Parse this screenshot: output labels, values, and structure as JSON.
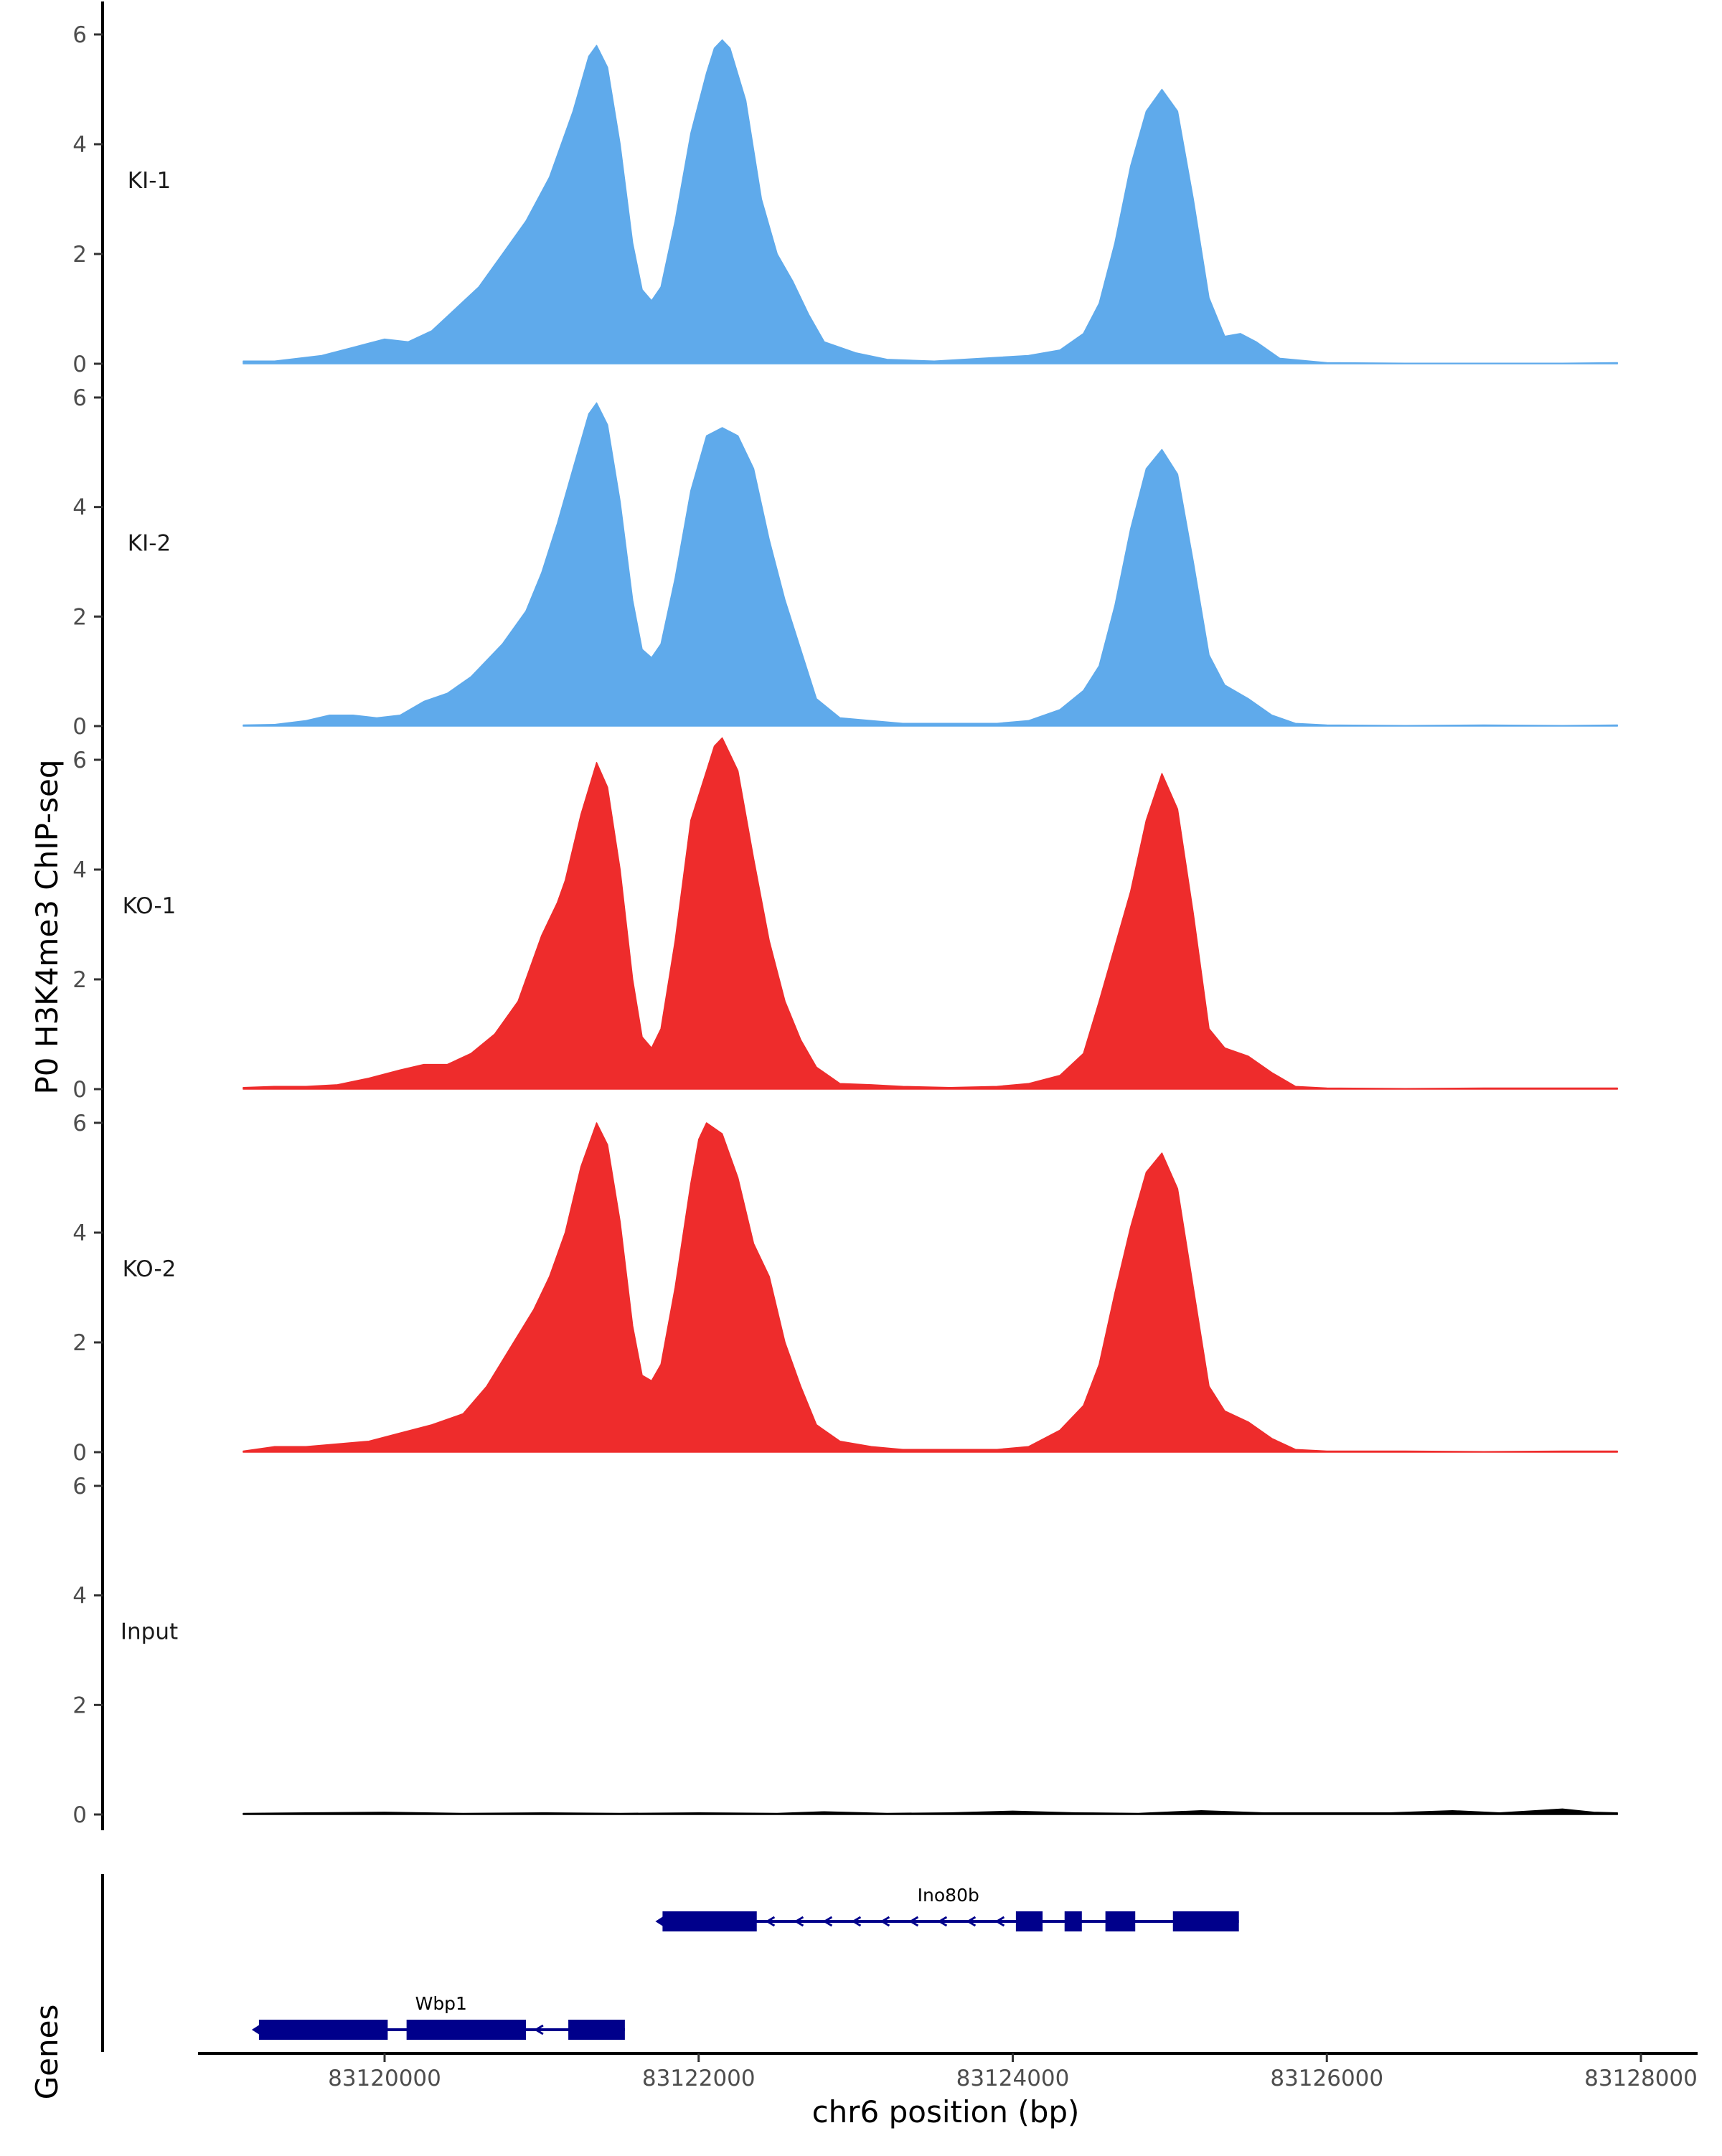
{
  "chart_data": {
    "type": "area",
    "ylabel": "P0 H3K4me3 ChIP-seq",
    "xlabel": "chr6 position (bp)",
    "xlim": [
      83118600,
      83128200
    ],
    "ylim": [
      0,
      6.6
    ],
    "y_ticks": [
      "0",
      "2",
      "4",
      "6"
    ],
    "x_ticks": [
      {
        "value": 83120000,
        "label": "83120000"
      },
      {
        "value": 83122000,
        "label": "83122000"
      },
      {
        "value": 83124000,
        "label": "83124000"
      },
      {
        "value": 83126000,
        "label": "83126000"
      },
      {
        "value": 83128000,
        "label": "83128000"
      }
    ],
    "genes_label": "Genes",
    "colors": {
      "KI": "#5faaeb",
      "KO": "#ee2c2c",
      "Input": "#000000",
      "gene": "#00008b"
    },
    "tracks": [
      {
        "name": "KI-1",
        "color": "#5faaeb",
        "points": [
          [
            83119100,
            0.05
          ],
          [
            83119300,
            0.05
          ],
          [
            83119600,
            0.15
          ],
          [
            83119800,
            0.3
          ],
          [
            83120000,
            0.45
          ],
          [
            83120150,
            0.4
          ],
          [
            83120300,
            0.6
          ],
          [
            83120450,
            1.0
          ],
          [
            83120600,
            1.4
          ],
          [
            83120750,
            2.0
          ],
          [
            83120900,
            2.6
          ],
          [
            83121050,
            3.4
          ],
          [
            83121200,
            4.6
          ],
          [
            83121300,
            5.6
          ],
          [
            83121350,
            5.8
          ],
          [
            83121420,
            5.4
          ],
          [
            83121500,
            4.0
          ],
          [
            83121580,
            2.2
          ],
          [
            83121640,
            1.35
          ],
          [
            83121700,
            1.15
          ],
          [
            83121760,
            1.4
          ],
          [
            83121850,
            2.6
          ],
          [
            83121950,
            4.2
          ],
          [
            83122050,
            5.3
          ],
          [
            83122100,
            5.75
          ],
          [
            83122150,
            5.9
          ],
          [
            83122200,
            5.75
          ],
          [
            83122300,
            4.8
          ],
          [
            83122400,
            3.0
          ],
          [
            83122500,
            2.0
          ],
          [
            83122600,
            1.5
          ],
          [
            83122700,
            0.9
          ],
          [
            83122800,
            0.4
          ],
          [
            83123000,
            0.2
          ],
          [
            83123200,
            0.08
          ],
          [
            83123500,
            0.05
          ],
          [
            83123800,
            0.1
          ],
          [
            83124100,
            0.15
          ],
          [
            83124300,
            0.25
          ],
          [
            83124450,
            0.55
          ],
          [
            83124550,
            1.1
          ],
          [
            83124650,
            2.2
          ],
          [
            83124750,
            3.6
          ],
          [
            83124850,
            4.6
          ],
          [
            83124950,
            5.0
          ],
          [
            83125050,
            4.6
          ],
          [
            83125150,
            3.0
          ],
          [
            83125250,
            1.2
          ],
          [
            83125350,
            0.5
          ],
          [
            83125450,
            0.55
          ],
          [
            83125550,
            0.4
          ],
          [
            83125700,
            0.1
          ],
          [
            83126000,
            0.02
          ],
          [
            83126500,
            0.01
          ],
          [
            83127000,
            0.01
          ],
          [
            83127500,
            0.01
          ],
          [
            83127850,
            0.02
          ]
        ]
      },
      {
        "name": "KI-2",
        "color": "#5faaeb",
        "points": [
          [
            83119100,
            0.02
          ],
          [
            83119300,
            0.03
          ],
          [
            83119500,
            0.1
          ],
          [
            83119650,
            0.2
          ],
          [
            83119800,
            0.2
          ],
          [
            83119950,
            0.15
          ],
          [
            83120100,
            0.2
          ],
          [
            83120250,
            0.45
          ],
          [
            83120400,
            0.6
          ],
          [
            83120550,
            0.9
          ],
          [
            83120750,
            1.5
          ],
          [
            83120900,
            2.1
          ],
          [
            83121000,
            2.8
          ],
          [
            83121100,
            3.7
          ],
          [
            83121200,
            4.7
          ],
          [
            83121300,
            5.7
          ],
          [
            83121350,
            5.9
          ],
          [
            83121420,
            5.5
          ],
          [
            83121500,
            4.1
          ],
          [
            83121580,
            2.3
          ],
          [
            83121640,
            1.4
          ],
          [
            83121700,
            1.25
          ],
          [
            83121760,
            1.5
          ],
          [
            83121850,
            2.7
          ],
          [
            83121950,
            4.3
          ],
          [
            83122050,
            5.3
          ],
          [
            83122150,
            5.45
          ],
          [
            83122250,
            5.3
          ],
          [
            83122350,
            4.7
          ],
          [
            83122450,
            3.4
          ],
          [
            83122550,
            2.3
          ],
          [
            83122650,
            1.4
          ],
          [
            83122750,
            0.5
          ],
          [
            83122900,
            0.15
          ],
          [
            83123100,
            0.1
          ],
          [
            83123300,
            0.05
          ],
          [
            83123600,
            0.05
          ],
          [
            83123900,
            0.05
          ],
          [
            83124100,
            0.1
          ],
          [
            83124300,
            0.3
          ],
          [
            83124450,
            0.65
          ],
          [
            83124550,
            1.1
          ],
          [
            83124650,
            2.2
          ],
          [
            83124750,
            3.6
          ],
          [
            83124850,
            4.7
          ],
          [
            83124950,
            5.05
          ],
          [
            83125050,
            4.6
          ],
          [
            83125150,
            3.0
          ],
          [
            83125250,
            1.3
          ],
          [
            83125350,
            0.75
          ],
          [
            83125500,
            0.5
          ],
          [
            83125650,
            0.2
          ],
          [
            83125800,
            0.05
          ],
          [
            83126000,
            0.02
          ],
          [
            83126500,
            0.01
          ],
          [
            83127000,
            0.02
          ],
          [
            83127500,
            0.01
          ],
          [
            83127850,
            0.02
          ]
        ]
      },
      {
        "name": "KO-1",
        "color": "#ee2c2c",
        "points": [
          [
            83119100,
            0.03
          ],
          [
            83119300,
            0.05
          ],
          [
            83119500,
            0.05
          ],
          [
            83119700,
            0.08
          ],
          [
            83119900,
            0.2
          ],
          [
            83120100,
            0.35
          ],
          [
            83120250,
            0.45
          ],
          [
            83120400,
            0.45
          ],
          [
            83120550,
            0.65
          ],
          [
            83120700,
            1.0
          ],
          [
            83120850,
            1.6
          ],
          [
            83121000,
            2.8
          ],
          [
            83121100,
            3.4
          ],
          [
            83121150,
            3.8
          ],
          [
            83121250,
            5.0
          ],
          [
            83121350,
            5.95
          ],
          [
            83121420,
            5.5
          ],
          [
            83121500,
            4.0
          ],
          [
            83121580,
            2.0
          ],
          [
            83121640,
            0.95
          ],
          [
            83121700,
            0.75
          ],
          [
            83121760,
            1.1
          ],
          [
            83121850,
            2.7
          ],
          [
            83121950,
            4.9
          ],
          [
            83122050,
            5.8
          ],
          [
            83122100,
            6.25
          ],
          [
            83122150,
            6.4
          ],
          [
            83122250,
            5.8
          ],
          [
            83122350,
            4.2
          ],
          [
            83122450,
            2.7
          ],
          [
            83122550,
            1.6
          ],
          [
            83122650,
            0.9
          ],
          [
            83122750,
            0.4
          ],
          [
            83122900,
            0.1
          ],
          [
            83123100,
            0.08
          ],
          [
            83123300,
            0.05
          ],
          [
            83123600,
            0.03
          ],
          [
            83123900,
            0.05
          ],
          [
            83124100,
            0.1
          ],
          [
            83124300,
            0.25
          ],
          [
            83124450,
            0.65
          ],
          [
            83124550,
            1.6
          ],
          [
            83124650,
            2.6
          ],
          [
            83124750,
            3.6
          ],
          [
            83124850,
            4.9
          ],
          [
            83124950,
            5.75
          ],
          [
            83125050,
            5.1
          ],
          [
            83125150,
            3.2
          ],
          [
            83125250,
            1.1
          ],
          [
            83125350,
            0.75
          ],
          [
            83125500,
            0.6
          ],
          [
            83125650,
            0.3
          ],
          [
            83125800,
            0.05
          ],
          [
            83126000,
            0.02
          ],
          [
            83126500,
            0.01
          ],
          [
            83127000,
            0.02
          ],
          [
            83127500,
            0.02
          ],
          [
            83127850,
            0.02
          ]
        ]
      },
      {
        "name": "KO-2",
        "color": "#ee2c2c",
        "points": [
          [
            83119100,
            0.02
          ],
          [
            83119300,
            0.1
          ],
          [
            83119500,
            0.1
          ],
          [
            83119700,
            0.15
          ],
          [
            83119900,
            0.2
          ],
          [
            83120100,
            0.35
          ],
          [
            83120300,
            0.5
          ],
          [
            83120500,
            0.7
          ],
          [
            83120650,
            1.2
          ],
          [
            83120800,
            1.9
          ],
          [
            83120950,
            2.6
          ],
          [
            83121050,
            3.2
          ],
          [
            83121150,
            4.0
          ],
          [
            83121250,
            5.2
          ],
          [
            83121350,
            6.0
          ],
          [
            83121420,
            5.6
          ],
          [
            83121500,
            4.2
          ],
          [
            83121580,
            2.3
          ],
          [
            83121640,
            1.4
          ],
          [
            83121700,
            1.3
          ],
          [
            83121760,
            1.6
          ],
          [
            83121850,
            3.0
          ],
          [
            83121950,
            4.9
          ],
          [
            83122000,
            5.7
          ],
          [
            83122050,
            6.0
          ],
          [
            83122150,
            5.8
          ],
          [
            83122250,
            5.0
          ],
          [
            83122350,
            3.8
          ],
          [
            83122450,
            3.2
          ],
          [
            83122550,
            2.0
          ],
          [
            83122650,
            1.2
          ],
          [
            83122750,
            0.5
          ],
          [
            83122900,
            0.2
          ],
          [
            83123100,
            0.1
          ],
          [
            83123300,
            0.05
          ],
          [
            83123600,
            0.05
          ],
          [
            83123900,
            0.05
          ],
          [
            83124100,
            0.1
          ],
          [
            83124300,
            0.4
          ],
          [
            83124450,
            0.85
          ],
          [
            83124550,
            1.6
          ],
          [
            83124650,
            2.9
          ],
          [
            83124750,
            4.1
          ],
          [
            83124850,
            5.1
          ],
          [
            83124950,
            5.45
          ],
          [
            83125050,
            4.8
          ],
          [
            83125150,
            3.0
          ],
          [
            83125250,
            1.2
          ],
          [
            83125350,
            0.75
          ],
          [
            83125500,
            0.55
          ],
          [
            83125650,
            0.25
          ],
          [
            83125800,
            0.05
          ],
          [
            83126000,
            0.02
          ],
          [
            83126500,
            0.02
          ],
          [
            83127000,
            0.01
          ],
          [
            83127500,
            0.02
          ],
          [
            83127850,
            0.02
          ]
        ]
      },
      {
        "name": "Input",
        "color": "#000000",
        "points": [
          [
            83119100,
            0.02
          ],
          [
            83119500,
            0.03
          ],
          [
            83120000,
            0.04
          ],
          [
            83120500,
            0.02
          ],
          [
            83121000,
            0.03
          ],
          [
            83121500,
            0.02
          ],
          [
            83122000,
            0.03
          ],
          [
            83122500,
            0.02
          ],
          [
            83122800,
            0.05
          ],
          [
            83123200,
            0.02
          ],
          [
            83123600,
            0.03
          ],
          [
            83124000,
            0.06
          ],
          [
            83124400,
            0.03
          ],
          [
            83124800,
            0.02
          ],
          [
            83125200,
            0.07
          ],
          [
            83125600,
            0.03
          ],
          [
            83126000,
            0.03
          ],
          [
            83126400,
            0.03
          ],
          [
            83126800,
            0.07
          ],
          [
            83127100,
            0.03
          ],
          [
            83127500,
            0.1
          ],
          [
            83127700,
            0.04
          ],
          [
            83127850,
            0.03
          ]
        ]
      }
    ],
    "genes": [
      {
        "name": "Ino80b",
        "strand": "-",
        "row": 0,
        "start": 83121770,
        "end": 83125440,
        "exons": [
          [
            83121770,
            83122370
          ],
          [
            83124020,
            83124190
          ],
          [
            83124330,
            83124440
          ],
          [
            83124590,
            83124780
          ],
          [
            83125020,
            83125440
          ]
        ],
        "label_pos": 83123590
      },
      {
        "name": "Wbp1",
        "strand": "-",
        "row": 1,
        "start": 83119200,
        "end": 83121530,
        "exons": [
          [
            83119200,
            83120020
          ],
          [
            83120140,
            83120900
          ],
          [
            83121170,
            83121530
          ]
        ],
        "label_pos": 83120360
      }
    ]
  }
}
